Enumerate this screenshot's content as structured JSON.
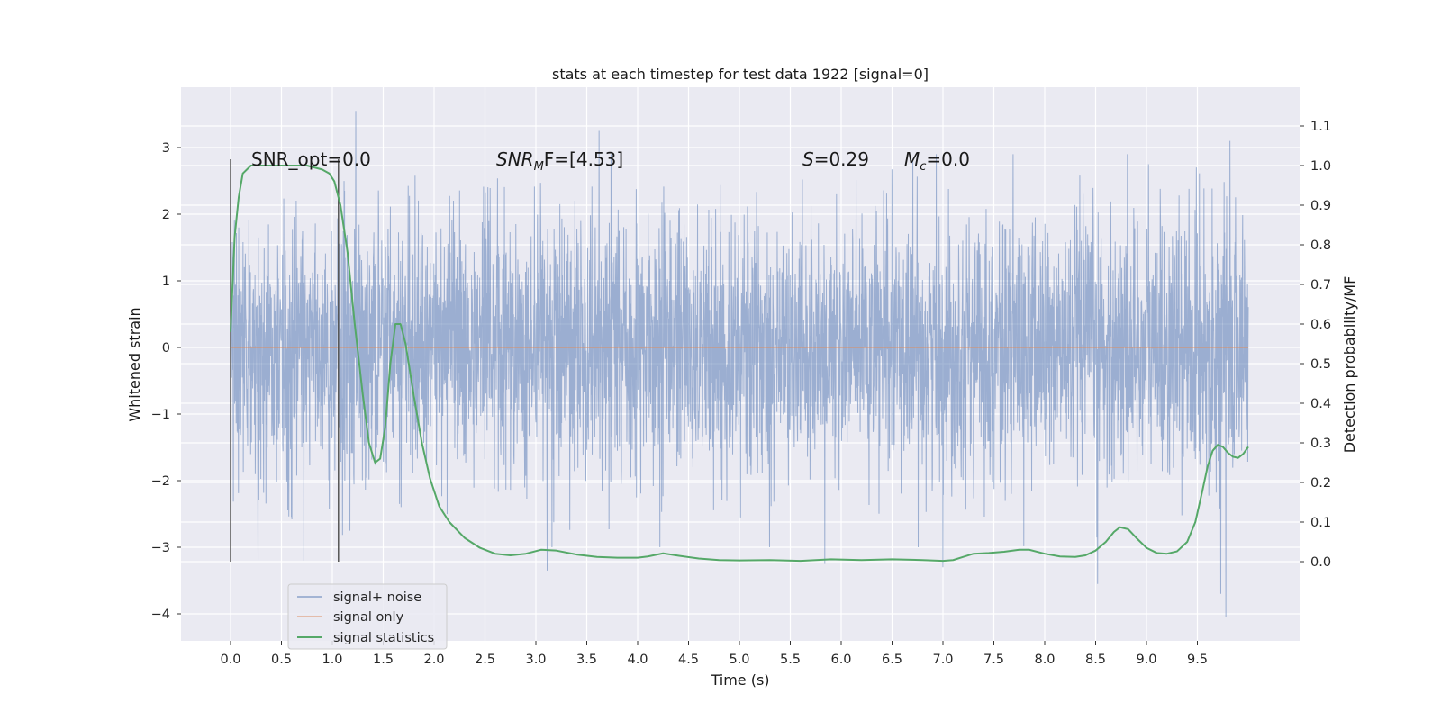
{
  "chart_data": {
    "type": "line",
    "title": "stats at each timestep for test data 1922 [signal=0]",
    "xlabel": "Time (s)",
    "ylabel": "Whitened strain",
    "ylabel_right": "Detection probability/MF",
    "xlim": [
      -0.5,
      10.5
    ],
    "ylim": [
      -4.45,
      3.85
    ],
    "ylim_right": [
      -0.2,
      1.2
    ],
    "x_ticks": [
      "0.0",
      "0.5",
      "1.0",
      "1.5",
      "2.0",
      "2.5",
      "3.0",
      "3.5",
      "4.0",
      "4.5",
      "5.0",
      "5.5",
      "6.0",
      "6.5",
      "7.0",
      "7.5",
      "8.0",
      "8.5",
      "9.0",
      "9.5"
    ],
    "y_ticks": [
      "3",
      "2",
      "1",
      "0",
      "−1",
      "−2",
      "−3",
      "−4"
    ],
    "y_ticks_right": [
      "1.1",
      "1.0",
      "0.9",
      "0.8",
      "0.7",
      "0.6",
      "0.5",
      "0.4",
      "0.3",
      "0.2",
      "0.1",
      "0.0"
    ],
    "grid": true,
    "legend_position": "lower-left",
    "annotations": {
      "snr_opt": "SNR_opt=0.0",
      "snr_mf_prefix": "SNR",
      "snr_mf_sub": "M",
      "snr_mf_suffix": "F=[4.53]",
      "s_var": "S",
      "s_val": "=0.29",
      "mc_var": "M",
      "mc_sub": "c",
      "mc_val": "=0.0"
    },
    "vertical_lines_x": [
      0.0,
      1.06
    ],
    "series": [
      {
        "name": "signal+ noise",
        "color": "#4c72b0",
        "x_range": [
          0.0,
          10.0
        ],
        "note_values": "dense Gaussian noise, std approx 0.95, extremes 3.55 / -4.05",
        "spikes": [
          [
            1.23,
            3.55
          ],
          [
            3.62,
            3.25
          ],
          [
            9.82,
            3.1
          ],
          [
            9.02,
            2.75
          ],
          [
            9.78,
            -4.05
          ],
          [
            9.73,
            -3.7
          ],
          [
            8.52,
            -3.55
          ],
          [
            3.11,
            -3.35
          ],
          [
            7.0,
            -3.3
          ],
          [
            5.84,
            -3.25
          ],
          [
            0.72,
            -3.2
          ],
          [
            0.27,
            -3.2
          ]
        ]
      },
      {
        "name": "signal only",
        "color": "#dd8452",
        "x": [
          0.0,
          10.0
        ],
        "values": [
          0.0,
          0.0
        ]
      },
      {
        "name": "signal statistics",
        "color": "#55a868",
        "axis": "right",
        "x": [
          0.0,
          0.04,
          0.08,
          0.12,
          0.2,
          0.35,
          0.55,
          0.75,
          0.9,
          0.97,
          1.02,
          1.08,
          1.15,
          1.22,
          1.3,
          1.36,
          1.42,
          1.47,
          1.52,
          1.57,
          1.62,
          1.67,
          1.72,
          1.8,
          1.88,
          1.96,
          2.05,
          2.15,
          2.3,
          2.45,
          2.6,
          2.75,
          2.9,
          3.05,
          3.2,
          3.4,
          3.6,
          3.8,
          4.0,
          4.1,
          4.25,
          4.4,
          4.6,
          4.8,
          5.0,
          5.3,
          5.6,
          5.9,
          6.2,
          6.5,
          6.8,
          7.0,
          7.1,
          7.2,
          7.3,
          7.45,
          7.6,
          7.75,
          7.85,
          8.0,
          8.15,
          8.3,
          8.4,
          8.5,
          8.6,
          8.68,
          8.74,
          8.82,
          8.9,
          9.0,
          9.1,
          9.2,
          9.3,
          9.4,
          9.48,
          9.55,
          9.6,
          9.65,
          9.7,
          9.75,
          9.8,
          9.85,
          9.9,
          9.95,
          10.0
        ],
        "values": [
          0.58,
          0.82,
          0.92,
          0.98,
          1.0,
          1.0,
          1.0,
          1.0,
          0.99,
          0.98,
          0.96,
          0.9,
          0.78,
          0.6,
          0.42,
          0.3,
          0.25,
          0.26,
          0.34,
          0.5,
          0.6,
          0.6,
          0.55,
          0.42,
          0.3,
          0.21,
          0.14,
          0.1,
          0.06,
          0.035,
          0.02,
          0.016,
          0.02,
          0.03,
          0.028,
          0.018,
          0.012,
          0.01,
          0.01,
          0.013,
          0.021,
          0.015,
          0.008,
          0.004,
          0.003,
          0.004,
          0.002,
          0.006,
          0.004,
          0.006,
          0.004,
          0.002,
          0.004,
          0.012,
          0.02,
          0.022,
          0.025,
          0.03,
          0.03,
          0.02,
          0.013,
          0.012,
          0.016,
          0.028,
          0.05,
          0.075,
          0.087,
          0.082,
          0.06,
          0.035,
          0.022,
          0.02,
          0.026,
          0.05,
          0.1,
          0.18,
          0.24,
          0.28,
          0.295,
          0.29,
          0.275,
          0.265,
          0.262,
          0.272,
          0.29
        ]
      }
    ]
  }
}
